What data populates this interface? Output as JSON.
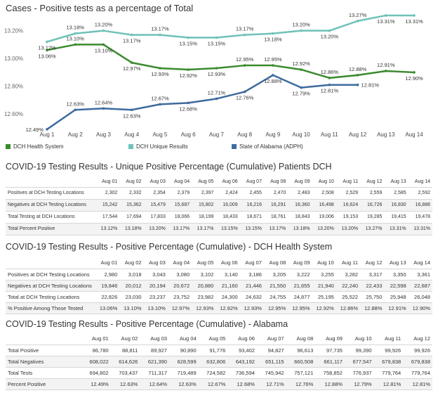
{
  "chart_data": {
    "type": "line",
    "title": "Cases - Positive tests as a percentage of Total",
    "x": [
      "Aug 1",
      "Aug 2",
      "Aug 3",
      "Aug 4",
      "Aug 5",
      "Aug 6",
      "Aug 7",
      "Aug 8",
      "Aug 9",
      "Aug 10",
      "Aug 11",
      "Aug 12",
      "Aug 13",
      "Aug 14"
    ],
    "y_ticks": [
      "12.60%",
      "12.80%",
      "13.00%",
      "13.20%"
    ],
    "ylim": [
      12.52,
      13.33
    ],
    "grid": false,
    "legend_position": "bottom",
    "series": [
      {
        "name": "DCH Health System",
        "color": "#3b8a2f",
        "values": [
          13.06,
          13.1,
          13.1,
          12.97,
          12.93,
          12.92,
          12.93,
          12.95,
          12.95,
          12.92,
          12.86,
          12.88,
          12.91,
          12.9
        ],
        "labels": [
          "13.06%",
          "13.10%",
          "13.10%",
          "12.97%",
          "12.93%",
          "12.92%",
          "12.93%",
          "12.95%",
          "12.95%",
          "12.92%",
          "12.86%",
          "12.88%",
          "12.91%",
          "12.90%"
        ]
      },
      {
        "name": "DCH Unique Results",
        "color": "#6fc2b9",
        "values": [
          13.12,
          13.18,
          13.2,
          13.17,
          13.17,
          13.15,
          13.15,
          13.17,
          13.18,
          13.2,
          13.2,
          13.27,
          13.31,
          13.31
        ],
        "labels": [
          "13.12%",
          "13.18%",
          "13.20%",
          "13.17%",
          "13.17%",
          "13.15%",
          "13.15%",
          "13.17%",
          "13.18%",
          "13.20%",
          "13.20%",
          "13.27%",
          "13.31%",
          "13.31%"
        ]
      },
      {
        "name": "State of Alabama (ADPH)",
        "color": "#3e6b9e",
        "values": [
          12.49,
          12.63,
          12.64,
          12.63,
          12.67,
          12.68,
          12.71,
          12.76,
          12.88,
          12.79,
          12.81,
          12.81,
          null,
          null
        ],
        "labels": [
          "12.49%",
          "12.63%",
          "12.64%",
          "12.63%",
          "12.67%",
          "12.68%",
          "12.71%",
          "12.76%",
          "12.88%",
          "12.79%",
          "12.81%",
          "12.81%",
          "",
          ""
        ]
      }
    ]
  },
  "tables": [
    {
      "title": "COVID-19 Testing Results - Unique Positive Percentage (Cumulative) Patients DCH",
      "columns": [
        "Aug 01",
        "Aug 02",
        "Aug 03",
        "Aug 04",
        "Aug 05",
        "Aug 06",
        "Aug 07",
        "Aug 08",
        "Aug 09",
        "Aug 10",
        "Aug 11",
        "Aug 12",
        "Aug 13",
        "Aug 14"
      ],
      "rows": [
        {
          "label": "Positives at DCH Testing Locations",
          "values": [
            "2,302",
            "2,332",
            "2,354",
            "2,379",
            "2,397",
            "2,424",
            "2,455",
            "2,470",
            "2,483",
            "2,508",
            "2,529",
            "2,559",
            "2,585",
            "2,592"
          ]
        },
        {
          "label": "Negatives at DCH Testing Locations",
          "values": [
            "15,242",
            "15,362",
            "15,479",
            "15,687",
            "15,802",
            "16,009",
            "16,216",
            "16,291",
            "16,360",
            "16,498",
            "16,624",
            "16,726",
            "16,830",
            "16,886"
          ]
        },
        {
          "label": "Total Testing at DCH Locations",
          "values": [
            "17,544",
            "17,694",
            "17,833",
            "18,066",
            "18,199",
            "18,433",
            "18,671",
            "18,761",
            "18,843",
            "19,006",
            "19,153",
            "19,285",
            "19,415",
            "19,478"
          ]
        },
        {
          "label": "Total Percent Positive",
          "values": [
            "13.12%",
            "13.18%",
            "13.20%",
            "13.17%",
            "13.17%",
            "13.15%",
            "13.15%",
            "13.17%",
            "13.18%",
            "13.20%",
            "13.20%",
            "13.27%",
            "13.31%",
            "13.31%"
          ]
        }
      ]
    },
    {
      "title": "COVID-19 Testing Results - Positive Percentage (Cumulative) - DCH Health System",
      "columns": [
        "Aug 01",
        "Aug 02",
        "Aug 03",
        "Aug 04",
        "Aug 05",
        "Aug 06",
        "Aug 07",
        "Aug 08",
        "Aug 09",
        "Aug 10",
        "Aug 11",
        "Aug 12",
        "Aug 13",
        "Aug 14"
      ],
      "rows": [
        {
          "label": "Positives at DCH Testing Locations",
          "values": [
            "2,980",
            "3,018",
            "3,043",
            "3,080",
            "3,102",
            "3,140",
            "3,186",
            "3,205",
            "3,222",
            "3,255",
            "3,282",
            "3,317",
            "3,350",
            "3,361"
          ]
        },
        {
          "label": "Negatives at DCH Testing Locations",
          "values": [
            "19,846",
            "20,012",
            "20,194",
            "20,672",
            "20,880",
            "21,160",
            "21,446",
            "21,550",
            "21,655",
            "21,940",
            "22,240",
            "22,433",
            "22,598",
            "22,687"
          ]
        },
        {
          "label": "Total at DCH Testing Locations",
          "values": [
            "22,826",
            "23,030",
            "23,237",
            "23,752",
            "23,982",
            "24,300",
            "24,632",
            "24,755",
            "24,877",
            "25,195",
            "25,522",
            "25,750",
            "25,948",
            "26,048"
          ]
        },
        {
          "label": "% Positive Among Those Tested",
          "values": [
            "13.06%",
            "13.10%",
            "13.10%",
            "12.97%",
            "12.93%",
            "12.92%",
            "12.93%",
            "12.95%",
            "12.95%",
            "12.92%",
            "12.86%",
            "12.88%",
            "12.91%",
            "12.90%"
          ]
        }
      ]
    },
    {
      "title": "COVID-19 Testing Results - Positive Percentage (Cumulative) - Alabama",
      "columns": [
        "Aug 01",
        "Aug 02",
        "Aug 03",
        "Aug 04",
        "Aug 05",
        "Aug 06",
        "Aug 07",
        "Aug 08",
        "Aug 09",
        "Aug 10",
        "Aug 11",
        "Aug 12"
      ],
      "rows": [
        {
          "label": "Total Positive",
          "values": [
            "86,780",
            "88,811",
            "89,927",
            "90,890",
            "91,776",
            "93,402",
            "94,827",
            "96,613",
            "97,735",
            "99,390",
            "99,926",
            "99,926"
          ]
        },
        {
          "label": "Total Negatives",
          "values": [
            "608,022",
            "614,626",
            "621,390",
            "628,599",
            "632,806",
            "643,192",
            "651,115",
            "660,508",
            "661,117",
            "677,547",
            "679,838",
            "679,838"
          ]
        },
        {
          "label": "Total Tests",
          "values": [
            "694,802",
            "703,437",
            "711,317",
            "719,489",
            "724,582",
            "736,594",
            "745,942",
            "757,121",
            "758,852",
            "776,937",
            "779,764",
            "779,764"
          ]
        },
        {
          "label": "Percent Positive",
          "values": [
            "12.49%",
            "12.63%",
            "12.64%",
            "12.63%",
            "12.67%",
            "12.68%",
            "12.71%",
            "12.76%",
            "12.88%",
            "12.79%",
            "12.81%",
            "12.81%"
          ]
        }
      ]
    }
  ]
}
